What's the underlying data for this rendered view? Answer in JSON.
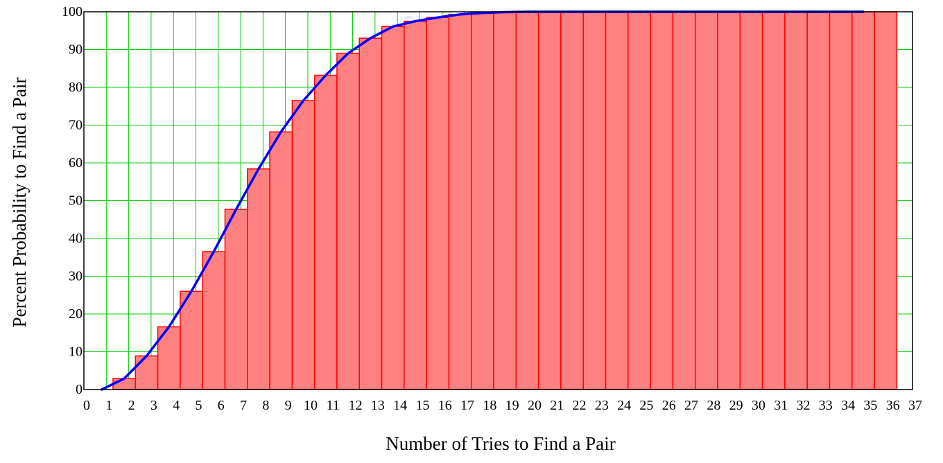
{
  "chart_data": {
    "type": "bar",
    "title": "",
    "xlabel": "Number of Tries to Find a Pair",
    "ylabel": "Percent Probability to Find a Pair",
    "xlim": [
      0,
      37
    ],
    "ylim": [
      0,
      100
    ],
    "x_ticks": [
      0,
      1,
      2,
      3,
      4,
      5,
      6,
      7,
      8,
      9,
      10,
      11,
      12,
      13,
      14,
      15,
      16,
      17,
      18,
      19,
      20,
      21,
      22,
      23,
      24,
      25,
      26,
      27,
      28,
      29,
      30,
      31,
      32,
      33,
      34,
      35,
      36,
      37
    ],
    "y_ticks": [
      0,
      10,
      20,
      30,
      40,
      50,
      60,
      70,
      80,
      90,
      100
    ],
    "grid": true,
    "legend": "none",
    "colors": {
      "bar_fill": "#ff8080",
      "bar_edge": "#ff0000",
      "line": "#0000ff",
      "grid": "#00cc00",
      "frame": "#000000"
    },
    "bars": {
      "x_start": [
        0.3,
        1.3,
        2.3,
        3.3,
        4.3,
        5.3,
        6.3,
        7.3,
        8.3,
        9.3,
        10.3,
        11.3,
        12.3,
        13.3,
        14.3,
        15.3,
        16.3,
        17.3,
        18.3,
        19.3,
        20.3,
        21.3,
        22.3,
        23.3,
        24.3,
        25.3,
        26.3,
        27.3,
        28.3,
        29.3,
        30.3,
        31.3,
        32.3,
        33.3,
        34.3,
        35.3
      ],
      "values": [
        0,
        2.9,
        8.9,
        16.6,
        26,
        36.5,
        47.7,
        58.4,
        68.2,
        76.5,
        83.2,
        89,
        93,
        96.1,
        97.5,
        98.5,
        99.3,
        99.7,
        99.9,
        100,
        100,
        100,
        100,
        100,
        100,
        100,
        100,
        100,
        100,
        100,
        100,
        100,
        100,
        100,
        100,
        100
      ]
    },
    "series": [
      {
        "x": [
          0.8,
          1.8,
          2.8,
          3.8,
          4.8,
          5.8,
          6.8,
          7.8,
          8.8,
          9.8,
          10.8,
          11.8,
          12.8,
          13.8,
          14.8,
          15.8,
          16.8,
          17.8,
          18.8,
          19.8,
          20.8,
          21.8,
          22.8,
          23.8,
          24.8,
          25.8,
          26.8,
          27.8,
          28.8,
          29.8,
          30.8,
          31.8,
          32.8,
          33.8,
          34.8
        ],
        "values": [
          0,
          2.9,
          8.9,
          16.6,
          26,
          36.5,
          47.7,
          58.4,
          68.2,
          76.5,
          83.2,
          89,
          93,
          96.1,
          97.5,
          98.5,
          99.3,
          99.7,
          99.9,
          100,
          100,
          100,
          100,
          100,
          100,
          100,
          100,
          100,
          100,
          100,
          100,
          100,
          100,
          100,
          100
        ]
      }
    ]
  }
}
